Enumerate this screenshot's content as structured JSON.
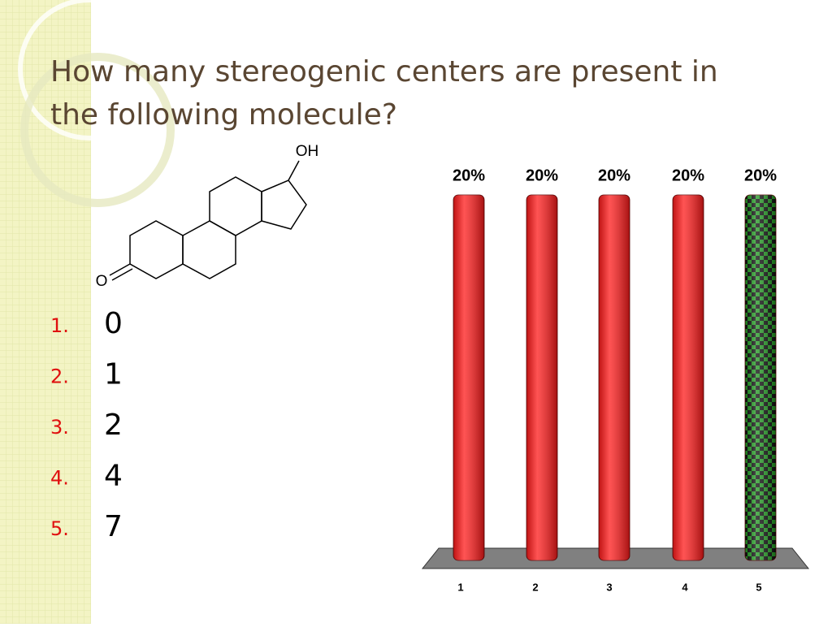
{
  "title": "How many stereogenic centers are present in the following molecule?",
  "molecule": {
    "labels": [
      "OH",
      "O"
    ]
  },
  "options": [
    {
      "number": "1.",
      "text": "0"
    },
    {
      "number": "2.",
      "text": "1"
    },
    {
      "number": "3.",
      "text": "2"
    },
    {
      "number": "4.",
      "text": "4"
    },
    {
      "number": "5.",
      "text": "7"
    }
  ],
  "chart_data": {
    "type": "bar",
    "categories": [
      "1",
      "2",
      "3",
      "4",
      "5"
    ],
    "values": [
      20,
      20,
      20,
      20,
      20
    ],
    "value_labels": [
      "20%",
      "20%",
      "20%",
      "20%",
      "20%"
    ],
    "colors": [
      "#ff1a1a",
      "#ff1a1a",
      "#ff1a1a",
      "#ff1a1a",
      "#1a8a1a"
    ],
    "ylim": [
      0,
      20
    ]
  }
}
